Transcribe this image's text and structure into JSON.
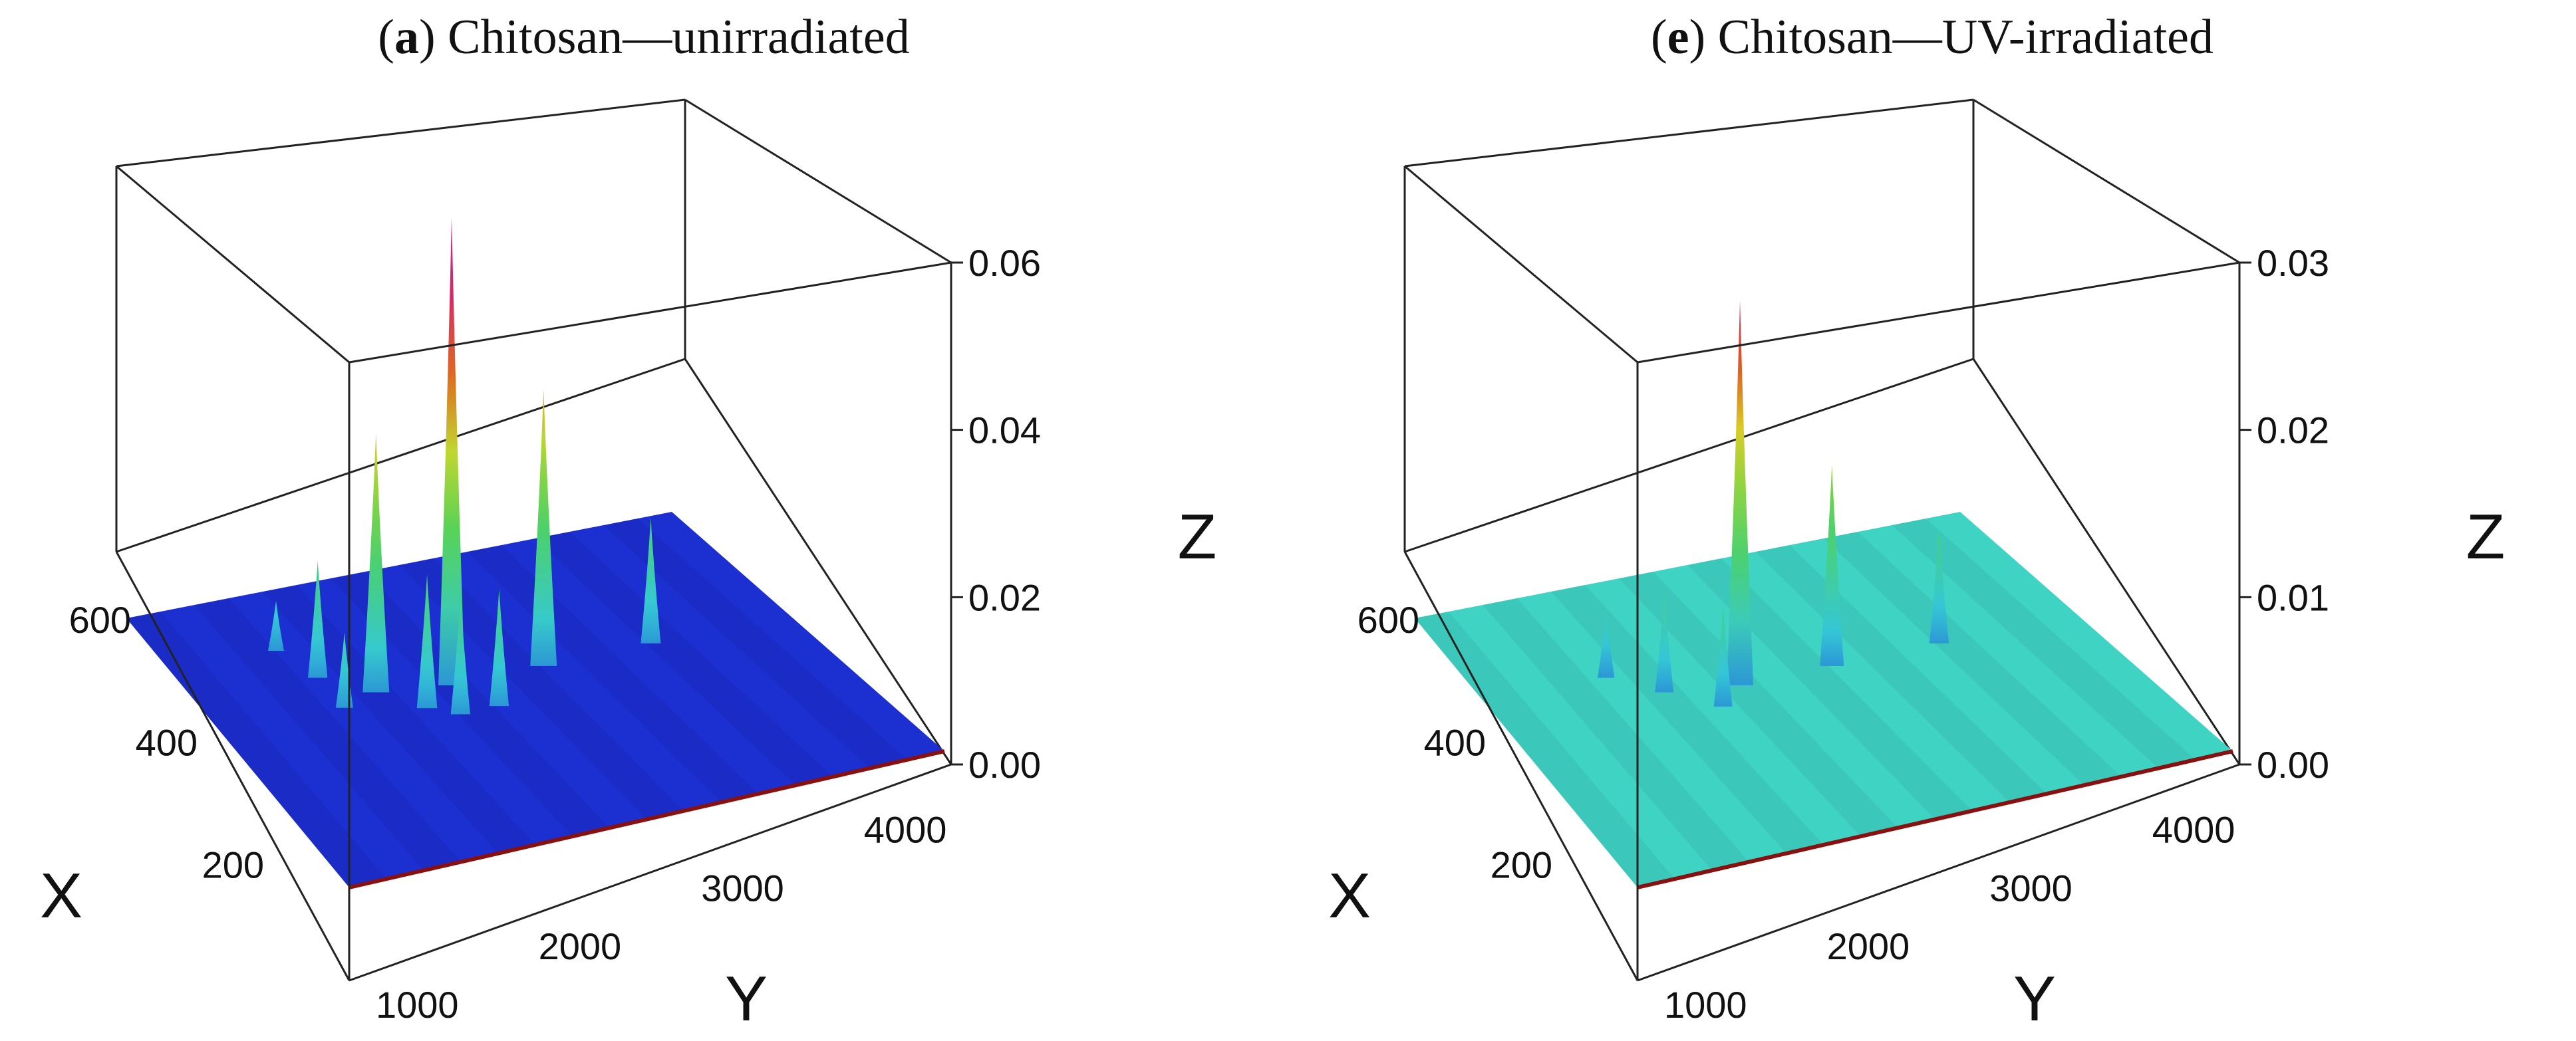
{
  "chart_data": [
    {
      "type": "surface3d",
      "panel_letter": "a",
      "panel_text": "Chitosan—unirradiated",
      "xlabel": "X",
      "ylabel": "Y",
      "zlabel": "Z",
      "xlim": [
        0,
        700
      ],
      "ylim": [
        500,
        4200
      ],
      "zlim": [
        0,
        0.06
      ],
      "xticks": [
        "200",
        "400",
        "600"
      ],
      "yticks": [
        "1000",
        "2000",
        "3000",
        "4000"
      ],
      "zticks": [
        "0.00",
        "0.02",
        "0.04",
        "0.06"
      ],
      "colormap": "blue-cyan-green-yellow-red-magenta",
      "base_color": "#1c2fd0",
      "peaks": [
        {
          "x": 560,
          "y": 1200,
          "z": 0.006
        },
        {
          "x": 480,
          "y": 1300,
          "z": 0.014
        },
        {
          "x": 400,
          "y": 1300,
          "z": 0.009
        },
        {
          "x": 420,
          "y": 1550,
          "z": 0.031
        },
        {
          "x": 360,
          "y": 1750,
          "z": 0.016
        },
        {
          "x": 330,
          "y": 1900,
          "z": 0.014
        },
        {
          "x": 400,
          "y": 2000,
          "z": 0.056
        },
        {
          "x": 330,
          "y": 2150,
          "z": 0.014
        },
        {
          "x": 400,
          "y": 2600,
          "z": 0.033
        },
        {
          "x": 400,
          "y": 3300,
          "z": 0.015
        }
      ]
    },
    {
      "type": "surface3d",
      "panel_letter": "e",
      "panel_text": "Chitosan—UV-irradiated",
      "xlabel": "X",
      "ylabel": "Y",
      "zlabel": "Z",
      "xlim": [
        0,
        700
      ],
      "ylim": [
        500,
        4200
      ],
      "zlim": [
        0,
        0.03
      ],
      "xticks": [
        "200",
        "400",
        "600"
      ],
      "yticks": [
        "1000",
        "2000",
        "3000",
        "4000"
      ],
      "zticks": [
        "0.00",
        "0.01",
        "0.02",
        "0.03"
      ],
      "colormap": "blue-cyan-green-yellow-red-magenta",
      "base_color": "#3fd3c4",
      "peaks": [
        {
          "x": 480,
          "y": 1300,
          "z": 0.004
        },
        {
          "x": 420,
          "y": 1550,
          "z": 0.006
        },
        {
          "x": 360,
          "y": 1800,
          "z": 0.006
        },
        {
          "x": 400,
          "y": 2000,
          "z": 0.023
        },
        {
          "x": 400,
          "y": 2600,
          "z": 0.012
        },
        {
          "x": 400,
          "y": 3300,
          "z": 0.007
        }
      ]
    }
  ]
}
